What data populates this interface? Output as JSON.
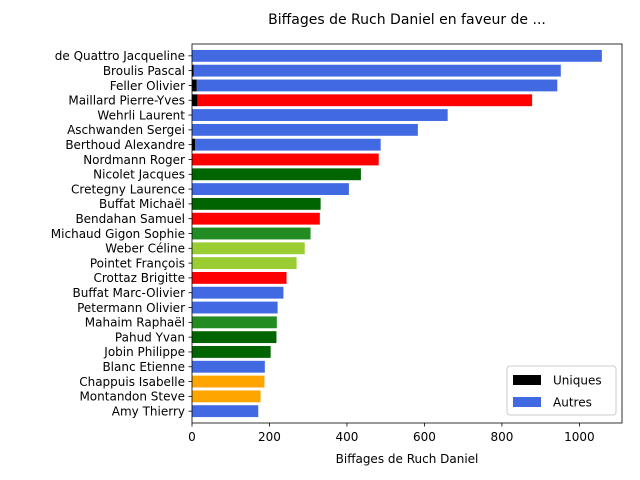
{
  "chart_data": {
    "type": "bar",
    "orientation": "horizontal",
    "title": "Biffages de Ruch Daniel en faveur de ...",
    "xlabel": "Biffages de Ruch Daniel",
    "ylabel": "",
    "xlim": [
      0,
      1110
    ],
    "xticks": [
      0,
      200,
      400,
      600,
      800,
      1000
    ],
    "grid": false,
    "legend_position": "lower-right",
    "categories": [
      "de Quattro Jacqueline",
      "Broulis Pascal",
      "Feller Olivier",
      "Maillard Pierre-Yves",
      "Wehrli Laurent",
      "Aschwanden Sergei",
      "Berthoud Alexandre",
      "Nordmann Roger",
      "Nicolet Jacques",
      "Cretegny Laurence",
      "Buffat Michaël",
      "Bendahan Samuel",
      "Michaud Gigon Sophie",
      "Weber Céline",
      "Pointet François",
      "Crottaz Brigitte",
      "Buffat Marc-Olivier",
      "Petermann Olivier",
      "Mahaim Raphaël",
      "Pahud Yvan",
      "Jobin Philippe",
      "Blanc Etienne",
      "Chappuis Isabelle",
      "Montandon Steve",
      "Amy Thierry"
    ],
    "series": [
      {
        "name": "Uniques",
        "values": [
          0,
          4,
          12,
          14,
          0,
          0,
          8,
          0,
          0,
          0,
          0,
          0,
          0,
          0,
          0,
          0,
          0,
          0,
          0,
          0,
          0,
          0,
          0,
          0,
          0
        ]
      },
      {
        "name": "Autres",
        "values": [
          1058,
          952,
          943,
          878,
          660,
          583,
          487,
          482,
          436,
          405,
          332,
          330,
          306,
          291,
          270,
          244,
          236,
          221,
          219,
          218,
          203,
          188,
          187,
          177,
          171
        ]
      }
    ],
    "bar_colors": [
      "#4169e1",
      "#4169e1",
      "#4169e1",
      "#ff0000",
      "#4169e1",
      "#4169e1",
      "#4169e1",
      "#ff0000",
      "#006400",
      "#4169e1",
      "#006400",
      "#ff0000",
      "#228b22",
      "#9acd32",
      "#9acd32",
      "#ff0000",
      "#4169e1",
      "#4169e1",
      "#228b22",
      "#006400",
      "#006400",
      "#4169e1",
      "#ffa500",
      "#ffa500",
      "#4169e1"
    ],
    "legend": [
      {
        "label": "Uniques",
        "color": "#000000"
      },
      {
        "label": "Autres",
        "color": "#4169e1"
      }
    ]
  }
}
